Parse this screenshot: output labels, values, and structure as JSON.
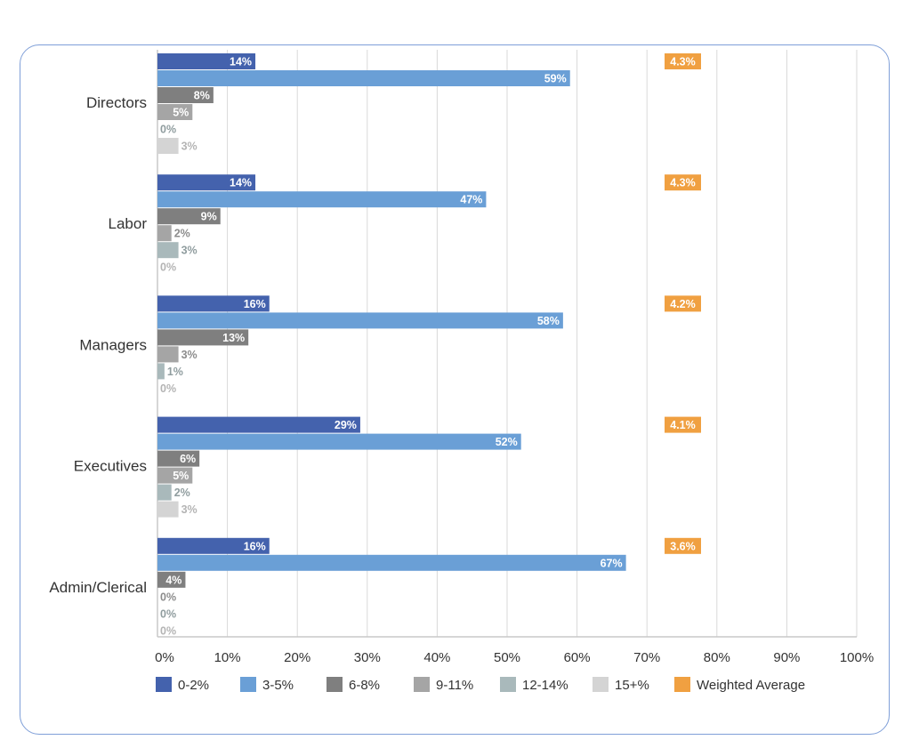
{
  "chart_data": {
    "type": "bar",
    "orientation": "horizontal",
    "categories": [
      "Directors",
      "Labor",
      "Managers",
      "Executives",
      "Admin/Clerical"
    ],
    "series": [
      {
        "name": "0-2%",
        "color": "#4462ad",
        "values": [
          14,
          14,
          16,
          29,
          16
        ]
      },
      {
        "name": "3-5%",
        "color": "#6a9fd6",
        "values": [
          59,
          47,
          58,
          52,
          67
        ]
      },
      {
        "name": "6-8%",
        "color": "#7f7f7f",
        "values": [
          8,
          9,
          13,
          6,
          4
        ]
      },
      {
        "name": "9-11%",
        "color": "#a5a5a5",
        "values": [
          5,
          2,
          3,
          5,
          0
        ]
      },
      {
        "name": "12-14%",
        "color": "#a9b9bb",
        "values": [
          0,
          3,
          1,
          2,
          0
        ]
      },
      {
        "name": "15+%",
        "color": "#d4d4d4",
        "values": [
          3,
          0,
          0,
          3,
          0
        ]
      }
    ],
    "weighted_average": {
      "name": "Weighted Average",
      "color": "#f0a041",
      "labels": [
        "4.3%",
        "4.3%",
        "4.2%",
        "4.1%",
        "3.6%"
      ]
    },
    "xlim": [
      0,
      100
    ],
    "xticks": [
      "0%",
      "10%",
      "20%",
      "30%",
      "40%",
      "50%",
      "60%",
      "70%",
      "80%",
      "90%",
      "100%"
    ],
    "grid": true,
    "legend_placement": "bottom"
  }
}
